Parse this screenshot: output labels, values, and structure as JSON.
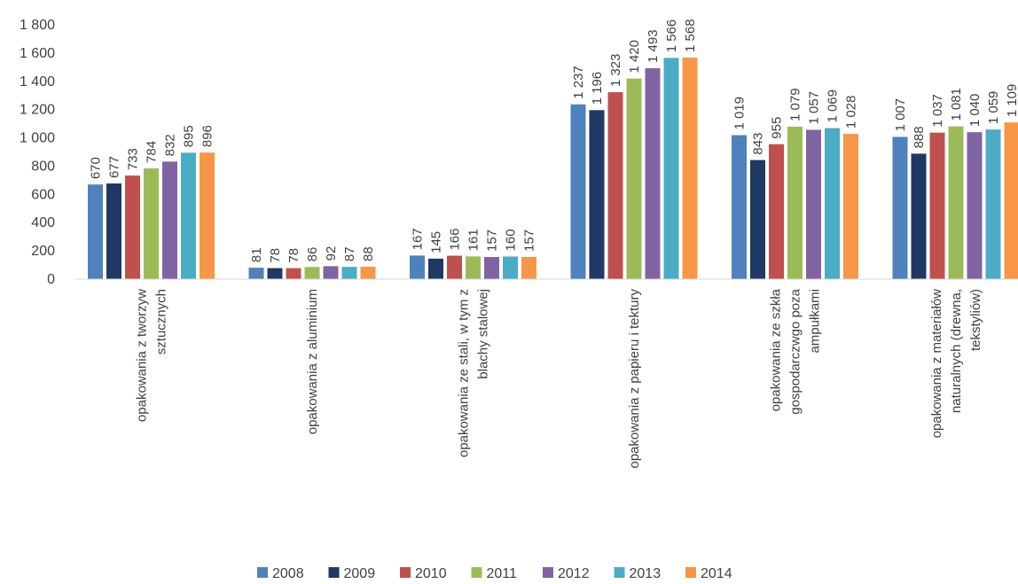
{
  "chart_data": {
    "type": "bar",
    "categories": [
      [
        "opakowania z tworzyw",
        "sztucznych"
      ],
      [
        "opakowania z aluminium"
      ],
      [
        "opakowania ze stali, w tym z",
        "blachy stalowej"
      ],
      [
        "opakowania z papieru i tektury"
      ],
      [
        "opakowania ze szkła",
        "gospodarczwgo poza",
        "ampułkami"
      ],
      [
        "opakowania z materiałów",
        "naturalnych (drewna,",
        "tekstyliów)"
      ]
    ],
    "series": [
      {
        "name": "2008",
        "color": "#4f81bd",
        "values": [
          670,
          81,
          167,
          1237,
          1019,
          1007
        ],
        "labels": [
          "670",
          "81",
          "167",
          "1 237",
          "1 019",
          "1 007"
        ]
      },
      {
        "name": "2009",
        "color": "#1f3864",
        "values": [
          677,
          78,
          145,
          1196,
          843,
          888
        ],
        "labels": [
          "677",
          "78",
          "145",
          "1 196",
          "843",
          "888"
        ]
      },
      {
        "name": "2010",
        "color": "#c0504d",
        "values": [
          733,
          78,
          166,
          1323,
          955,
          1037
        ],
        "labels": [
          "733",
          "78",
          "166",
          "1 323",
          "955",
          "1 037"
        ]
      },
      {
        "name": "2011",
        "color": "#9bbb59",
        "values": [
          784,
          86,
          161,
          1420,
          1079,
          1081
        ],
        "labels": [
          "784",
          "86",
          "161",
          "1 420",
          "1 079",
          "1 081"
        ]
      },
      {
        "name": "2012",
        "color": "#8064a2",
        "values": [
          832,
          92,
          157,
          1493,
          1057,
          1040
        ],
        "labels": [
          "832",
          "92",
          "157",
          "1 493",
          "1 057",
          "1 040"
        ]
      },
      {
        "name": "2013",
        "color": "#4bacc6",
        "values": [
          895,
          87,
          160,
          1566,
          1069,
          1059
        ],
        "labels": [
          "895",
          "87",
          "160",
          "1 566",
          "1 069",
          "1 059"
        ]
      },
      {
        "name": "2014",
        "color": "#f79646",
        "values": [
          896,
          88,
          157,
          1568,
          1028,
          1109
        ],
        "labels": [
          "896",
          "88",
          "157",
          "1 568",
          "1 028",
          "1 109"
        ]
      }
    ],
    "yticks": [
      "0",
      "200",
      "400",
      "600",
      "800",
      "1 000",
      "1 200",
      "1 400",
      "1 600",
      "1 800"
    ],
    "ylim": [
      0,
      1800
    ],
    "legend_position": "bottom",
    "grid": false
  }
}
